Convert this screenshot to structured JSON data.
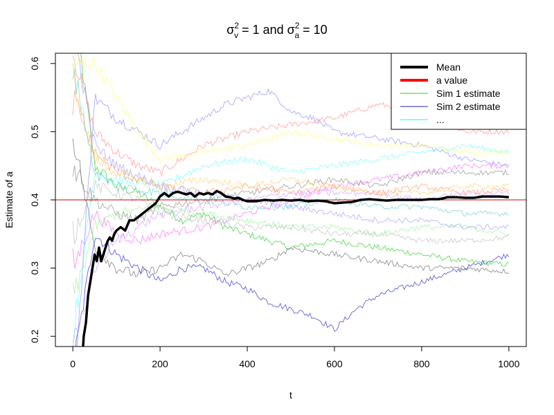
{
  "chart_data": {
    "type": "line",
    "title": {
      "sigma": "σ",
      "sup": "2",
      "sub_v": "v",
      "part1": " = 1  and  ",
      "sub_a": "a",
      "part2": " = 10"
    },
    "xlabel": "t",
    "ylabel": "Estimate of a",
    "xlim": [
      -40,
      1040
    ],
    "ylim": [
      0.185,
      0.615
    ],
    "x_ticks": [
      0,
      200,
      400,
      600,
      800,
      1000
    ],
    "x_tick_labels": [
      "0",
      "200",
      "400",
      "600",
      "800",
      "1000"
    ],
    "y_ticks": [
      0.2,
      0.3,
      0.4,
      0.5,
      0.6
    ],
    "y_tick_labels": [
      "0.2",
      "0.3",
      "0.4",
      "0.5",
      "0.6"
    ],
    "grid": false,
    "legend_position": "top-right",
    "legend": [
      {
        "label": "Mean",
        "color": "#000000",
        "kind": "thick"
      },
      {
        "label": "a value",
        "color": "#ff0000",
        "kind": "thick"
      },
      {
        "label": "Sim 1 estimate",
        "color": "#22cc22",
        "kind": "thin"
      },
      {
        "label": "Sim 2 estimate",
        "color": "#2222cc",
        "kind": "thin"
      },
      {
        "label": "...",
        "color": "#00ffff",
        "kind": "thin"
      }
    ],
    "reference_line": {
      "value": 0.4,
      "color": "#cc0000"
    },
    "mean_series": {
      "name": "Mean",
      "color": "#000000",
      "x": [
        20,
        25,
        30,
        35,
        40,
        45,
        50,
        55,
        60,
        65,
        70,
        75,
        80,
        85,
        90,
        95,
        100,
        110,
        120,
        130,
        140,
        150,
        160,
        170,
        180,
        190,
        200,
        210,
        220,
        230,
        240,
        250,
        260,
        270,
        280,
        290,
        300,
        310,
        320,
        330,
        340,
        350,
        360,
        370,
        380,
        390,
        400,
        420,
        440,
        460,
        480,
        500,
        520,
        540,
        560,
        580,
        600,
        620,
        640,
        660,
        680,
        700,
        720,
        740,
        760,
        780,
        800,
        820,
        840,
        860,
        880,
        900,
        920,
        940,
        960,
        980,
        1000
      ],
      "y": [
        0.15,
        0.2,
        0.22,
        0.26,
        0.28,
        0.3,
        0.32,
        0.31,
        0.33,
        0.31,
        0.32,
        0.33,
        0.34,
        0.345,
        0.34,
        0.35,
        0.355,
        0.36,
        0.355,
        0.37,
        0.37,
        0.375,
        0.38,
        0.385,
        0.39,
        0.395,
        0.405,
        0.41,
        0.405,
        0.41,
        0.412,
        0.41,
        0.408,
        0.41,
        0.405,
        0.41,
        0.408,
        0.41,
        0.408,
        0.413,
        0.41,
        0.405,
        0.404,
        0.402,
        0.403,
        0.4,
        0.398,
        0.398,
        0.4,
        0.399,
        0.4,
        0.399,
        0.4,
        0.398,
        0.399,
        0.398,
        0.395,
        0.396,
        0.397,
        0.4,
        0.401,
        0.4,
        0.399,
        0.4,
        0.4,
        0.4,
        0.4,
        0.401,
        0.401,
        0.404,
        0.404,
        0.403,
        0.403,
        0.405,
        0.405,
        0.405,
        0.404
      ]
    },
    "sim_series": [
      {
        "color": "#22cc22",
        "x": [
          0,
          50,
          100,
          150,
          200,
          250,
          300,
          350,
          400,
          500,
          600,
          700,
          800,
          900,
          1000
        ],
        "y": [
          0.7,
          0.45,
          0.42,
          0.41,
          0.39,
          0.37,
          0.38,
          0.36,
          0.35,
          0.33,
          0.34,
          0.33,
          0.32,
          0.31,
          0.305
        ]
      },
      {
        "color": "#2222cc",
        "x": [
          0,
          50,
          100,
          150,
          200,
          250,
          300,
          350,
          400,
          450,
          500,
          550,
          600,
          650,
          700,
          750,
          800,
          850,
          900,
          950,
          1000
        ],
        "y": [
          0.15,
          0.35,
          0.32,
          0.3,
          0.28,
          0.3,
          0.3,
          0.28,
          0.27,
          0.25,
          0.24,
          0.23,
          0.21,
          0.24,
          0.26,
          0.27,
          0.28,
          0.29,
          0.3,
          0.31,
          0.32
        ]
      },
      {
        "color": "#ff8888",
        "x": [
          0,
          50,
          100,
          150,
          200,
          250,
          300,
          400,
          500,
          600,
          700,
          800,
          900,
          1000
        ],
        "y": [
          0.62,
          0.5,
          0.47,
          0.45,
          0.44,
          0.46,
          0.48,
          0.5,
          0.51,
          0.52,
          0.54,
          0.53,
          0.5,
          0.5
        ]
      },
      {
        "color": "#8888ff",
        "x": [
          0,
          50,
          100,
          150,
          200,
          250,
          300,
          350,
          400,
          450,
          500,
          550,
          600,
          700,
          800,
          900,
          1000
        ],
        "y": [
          0.1,
          0.55,
          0.52,
          0.5,
          0.48,
          0.5,
          0.52,
          0.54,
          0.55,
          0.56,
          0.53,
          0.52,
          0.5,
          0.49,
          0.48,
          0.46,
          0.45
        ]
      },
      {
        "color": "#ffff66",
        "x": [
          0,
          50,
          100,
          150,
          200,
          300,
          400,
          500,
          600,
          700,
          800,
          900,
          1000
        ],
        "y": [
          0.6,
          0.6,
          0.55,
          0.5,
          0.46,
          0.47,
          0.48,
          0.5,
          0.49,
          0.48,
          0.48,
          0.47,
          0.47
        ]
      },
      {
        "color": "#66ffff",
        "x": [
          0,
          50,
          100,
          200,
          300,
          400,
          500,
          600,
          700,
          800,
          900,
          1000
        ],
        "y": [
          0.2,
          0.44,
          0.43,
          0.42,
          0.45,
          0.46,
          0.44,
          0.45,
          0.46,
          0.47,
          0.48,
          0.47
        ]
      },
      {
        "color": "#ff66ff",
        "x": [
          0,
          50,
          100,
          150,
          200,
          300,
          400,
          500,
          600,
          700,
          800,
          900,
          1000
        ],
        "y": [
          0.3,
          0.38,
          0.35,
          0.34,
          0.35,
          0.36,
          0.38,
          0.4,
          0.42,
          0.43,
          0.44,
          0.45,
          0.45
        ]
      },
      {
        "color": "#666666",
        "x": [
          0,
          50,
          100,
          150,
          200,
          250,
          300,
          350,
          400,
          450,
          500,
          600,
          700,
          800,
          900,
          1000
        ],
        "y": [
          0.5,
          0.33,
          0.3,
          0.29,
          0.3,
          0.32,
          0.31,
          0.29,
          0.3,
          0.31,
          0.33,
          0.32,
          0.31,
          0.3,
          0.3,
          0.295
        ]
      },
      {
        "color": "#888888",
        "x": [
          0,
          50,
          100,
          150,
          200,
          300,
          400,
          500,
          600,
          700,
          800,
          900,
          1000
        ],
        "y": [
          0.45,
          0.4,
          0.38,
          0.37,
          0.39,
          0.4,
          0.41,
          0.42,
          0.43,
          0.42,
          0.44,
          0.44,
          0.44
        ]
      },
      {
        "color": "#bbbbbb",
        "x": [
          0,
          50,
          100,
          150,
          200,
          300,
          400,
          500,
          600,
          700,
          800,
          900,
          1000
        ],
        "y": [
          0.35,
          0.42,
          0.41,
          0.4,
          0.38,
          0.37,
          0.36,
          0.36,
          0.35,
          0.35,
          0.34,
          0.34,
          0.345
        ]
      },
      {
        "color": "#ff9966",
        "x": [
          0,
          50,
          100,
          150,
          200,
          300,
          400,
          500,
          600,
          700,
          800,
          900,
          1000
        ],
        "y": [
          0.55,
          0.47,
          0.44,
          0.43,
          0.42,
          0.41,
          0.42,
          0.41,
          0.42,
          0.41,
          0.42,
          0.41,
          0.415
        ]
      },
      {
        "color": "#99ee99",
        "x": [
          0,
          50,
          100,
          200,
          300,
          400,
          500,
          600,
          700,
          800,
          900,
          1000
        ],
        "y": [
          0.25,
          0.36,
          0.38,
          0.39,
          0.38,
          0.37,
          0.36,
          0.36,
          0.35,
          0.36,
          0.36,
          0.35
        ]
      },
      {
        "color": "#9999ff",
        "x": [
          0,
          50,
          100,
          200,
          300,
          400,
          500,
          600,
          700,
          800,
          900,
          1000
        ],
        "y": [
          0.65,
          0.48,
          0.45,
          0.42,
          0.41,
          0.4,
          0.39,
          0.38,
          0.37,
          0.37,
          0.36,
          0.36
        ]
      },
      {
        "color": "#ffcc66",
        "x": [
          0,
          50,
          100,
          200,
          300,
          400,
          500,
          600,
          700,
          800,
          900,
          1000
        ],
        "y": [
          0.58,
          0.46,
          0.44,
          0.42,
          0.43,
          0.42,
          0.43,
          0.42,
          0.41,
          0.41,
          0.42,
          0.42
        ]
      },
      {
        "color": "#cc99ff",
        "x": [
          0,
          50,
          100,
          200,
          300,
          400,
          500,
          600,
          700,
          800,
          900,
          1000
        ],
        "y": [
          0.18,
          0.3,
          0.34,
          0.38,
          0.39,
          0.4,
          0.41,
          0.41,
          0.41,
          0.4,
          0.41,
          0.41
        ]
      },
      {
        "color": "#66cccc",
        "x": [
          0,
          50,
          100,
          200,
          300,
          400,
          500,
          600,
          700,
          800,
          900,
          1000
        ],
        "y": [
          0.6,
          0.44,
          0.42,
          0.41,
          0.4,
          0.39,
          0.39,
          0.4,
          0.39,
          0.39,
          0.38,
          0.38
        ]
      }
    ]
  }
}
